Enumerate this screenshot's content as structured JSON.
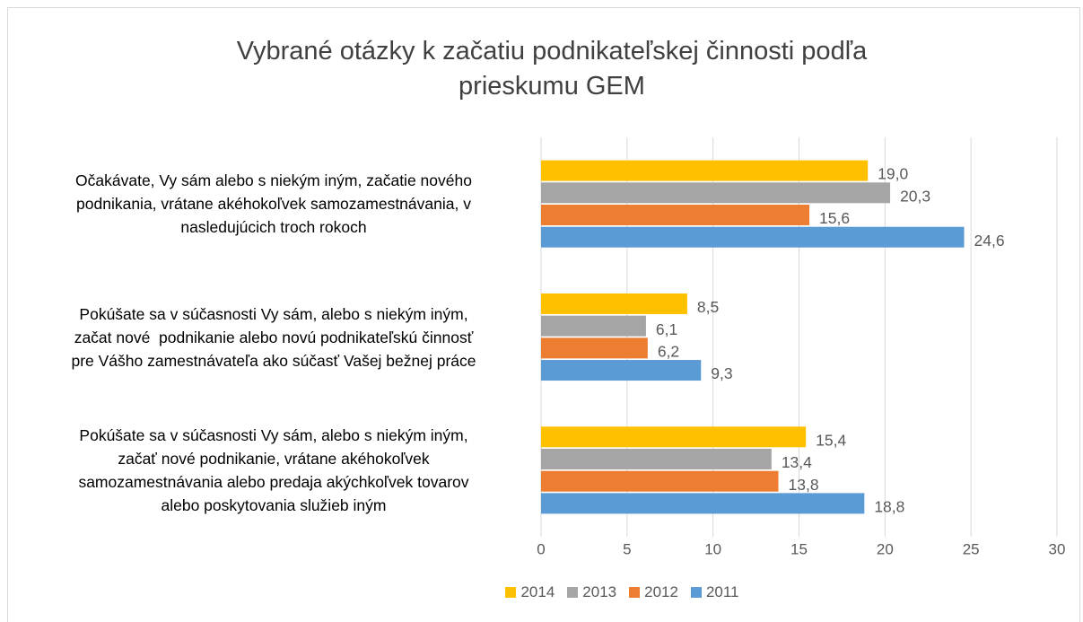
{
  "chart_data": {
    "type": "hbar",
    "title": "Vybrané otázky k začatiu podnikateľskej činnosti podľa\nprieskumu GEM",
    "categories": [
      "Očakávate, Vy sám alebo s niekým iným, začatie nového\npodnikania, vrátane akéhokoľvek samozamestnávania, v\nnasledujúcich troch rokoch",
      "Pokúšate sa v súčasnosti Vy sám, alebo s niekým iným,\nzačat nové  podnikanie alebo novú podnikateľskú činnosť\npre Vášho zamestnávateľa ako súčasť Vašej bežnej práce",
      "Pokúšate sa v súčasnosti Vy sám, alebo s niekým iným,\nzačať nové podnikanie, vrátane akéhokoľvek\nsamozamestnávania alebo predaja akýchkoľvek tovarov\nalebo poskytovania služieb iným"
    ],
    "series": [
      {
        "name": "2014",
        "color": "#ffc000",
        "values": [
          19.0,
          8.5,
          15.4
        ],
        "value_labels": [
          "19,0",
          "8,5",
          "15,4"
        ]
      },
      {
        "name": "2013",
        "color": "#a5a5a5",
        "values": [
          20.3,
          6.1,
          13.4
        ],
        "value_labels": [
          "20,3",
          "6,1",
          "13,4"
        ]
      },
      {
        "name": "2012",
        "color": "#ed7d31",
        "values": [
          15.6,
          6.2,
          13.8
        ],
        "value_labels": [
          "15,6",
          "6,2",
          "13,8"
        ]
      },
      {
        "name": "2011",
        "color": "#5b9bd5",
        "values": [
          24.6,
          9.3,
          18.8
        ],
        "value_labels": [
          "24,6",
          "9,3",
          "18,8"
        ]
      }
    ],
    "xlim": [
      0,
      30
    ],
    "xticks": [
      0,
      5,
      10,
      15,
      20,
      25,
      30
    ],
    "grid": true,
    "legend": "bottom"
  }
}
